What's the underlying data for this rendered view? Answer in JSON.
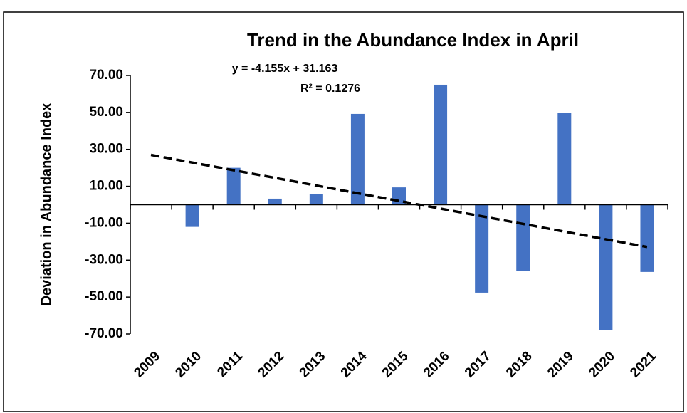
{
  "chart_data": {
    "type": "bar",
    "title": "Trend in the Abundance Index in April",
    "y_label": "Deviation in Abundance Index",
    "categories": [
      "2009",
      "2010",
      "2011",
      "2012",
      "2013",
      "2014",
      "2015",
      "2016",
      "2017",
      "2018",
      "2019",
      "2020",
      "2021"
    ],
    "values": [
      0,
      -12,
      20,
      3.3,
      5.6,
      49.2,
      9.4,
      65,
      -47.6,
      -36,
      49.6,
      -67.7,
      -36.4
    ],
    "color": "#4472c4",
    "ylim": [
      -70,
      70
    ],
    "yticks": [
      {
        "value": 70,
        "label": "70.00"
      },
      {
        "value": 50,
        "label": "50.00"
      },
      {
        "value": 30,
        "label": "30.00"
      },
      {
        "value": 10,
        "label": "10.00"
      },
      {
        "value": -10,
        "label": "-10.00"
      },
      {
        "value": -30,
        "label": "-30.00"
      },
      {
        "value": -50,
        "label": "-50.00"
      },
      {
        "value": -70,
        "label": "-70.00"
      }
    ],
    "trendline": {
      "slope": -4.155,
      "intercept": 31.163,
      "equation": "y = -4.155x + 31.163",
      "r_squared": "R² = 0.1276"
    }
  }
}
